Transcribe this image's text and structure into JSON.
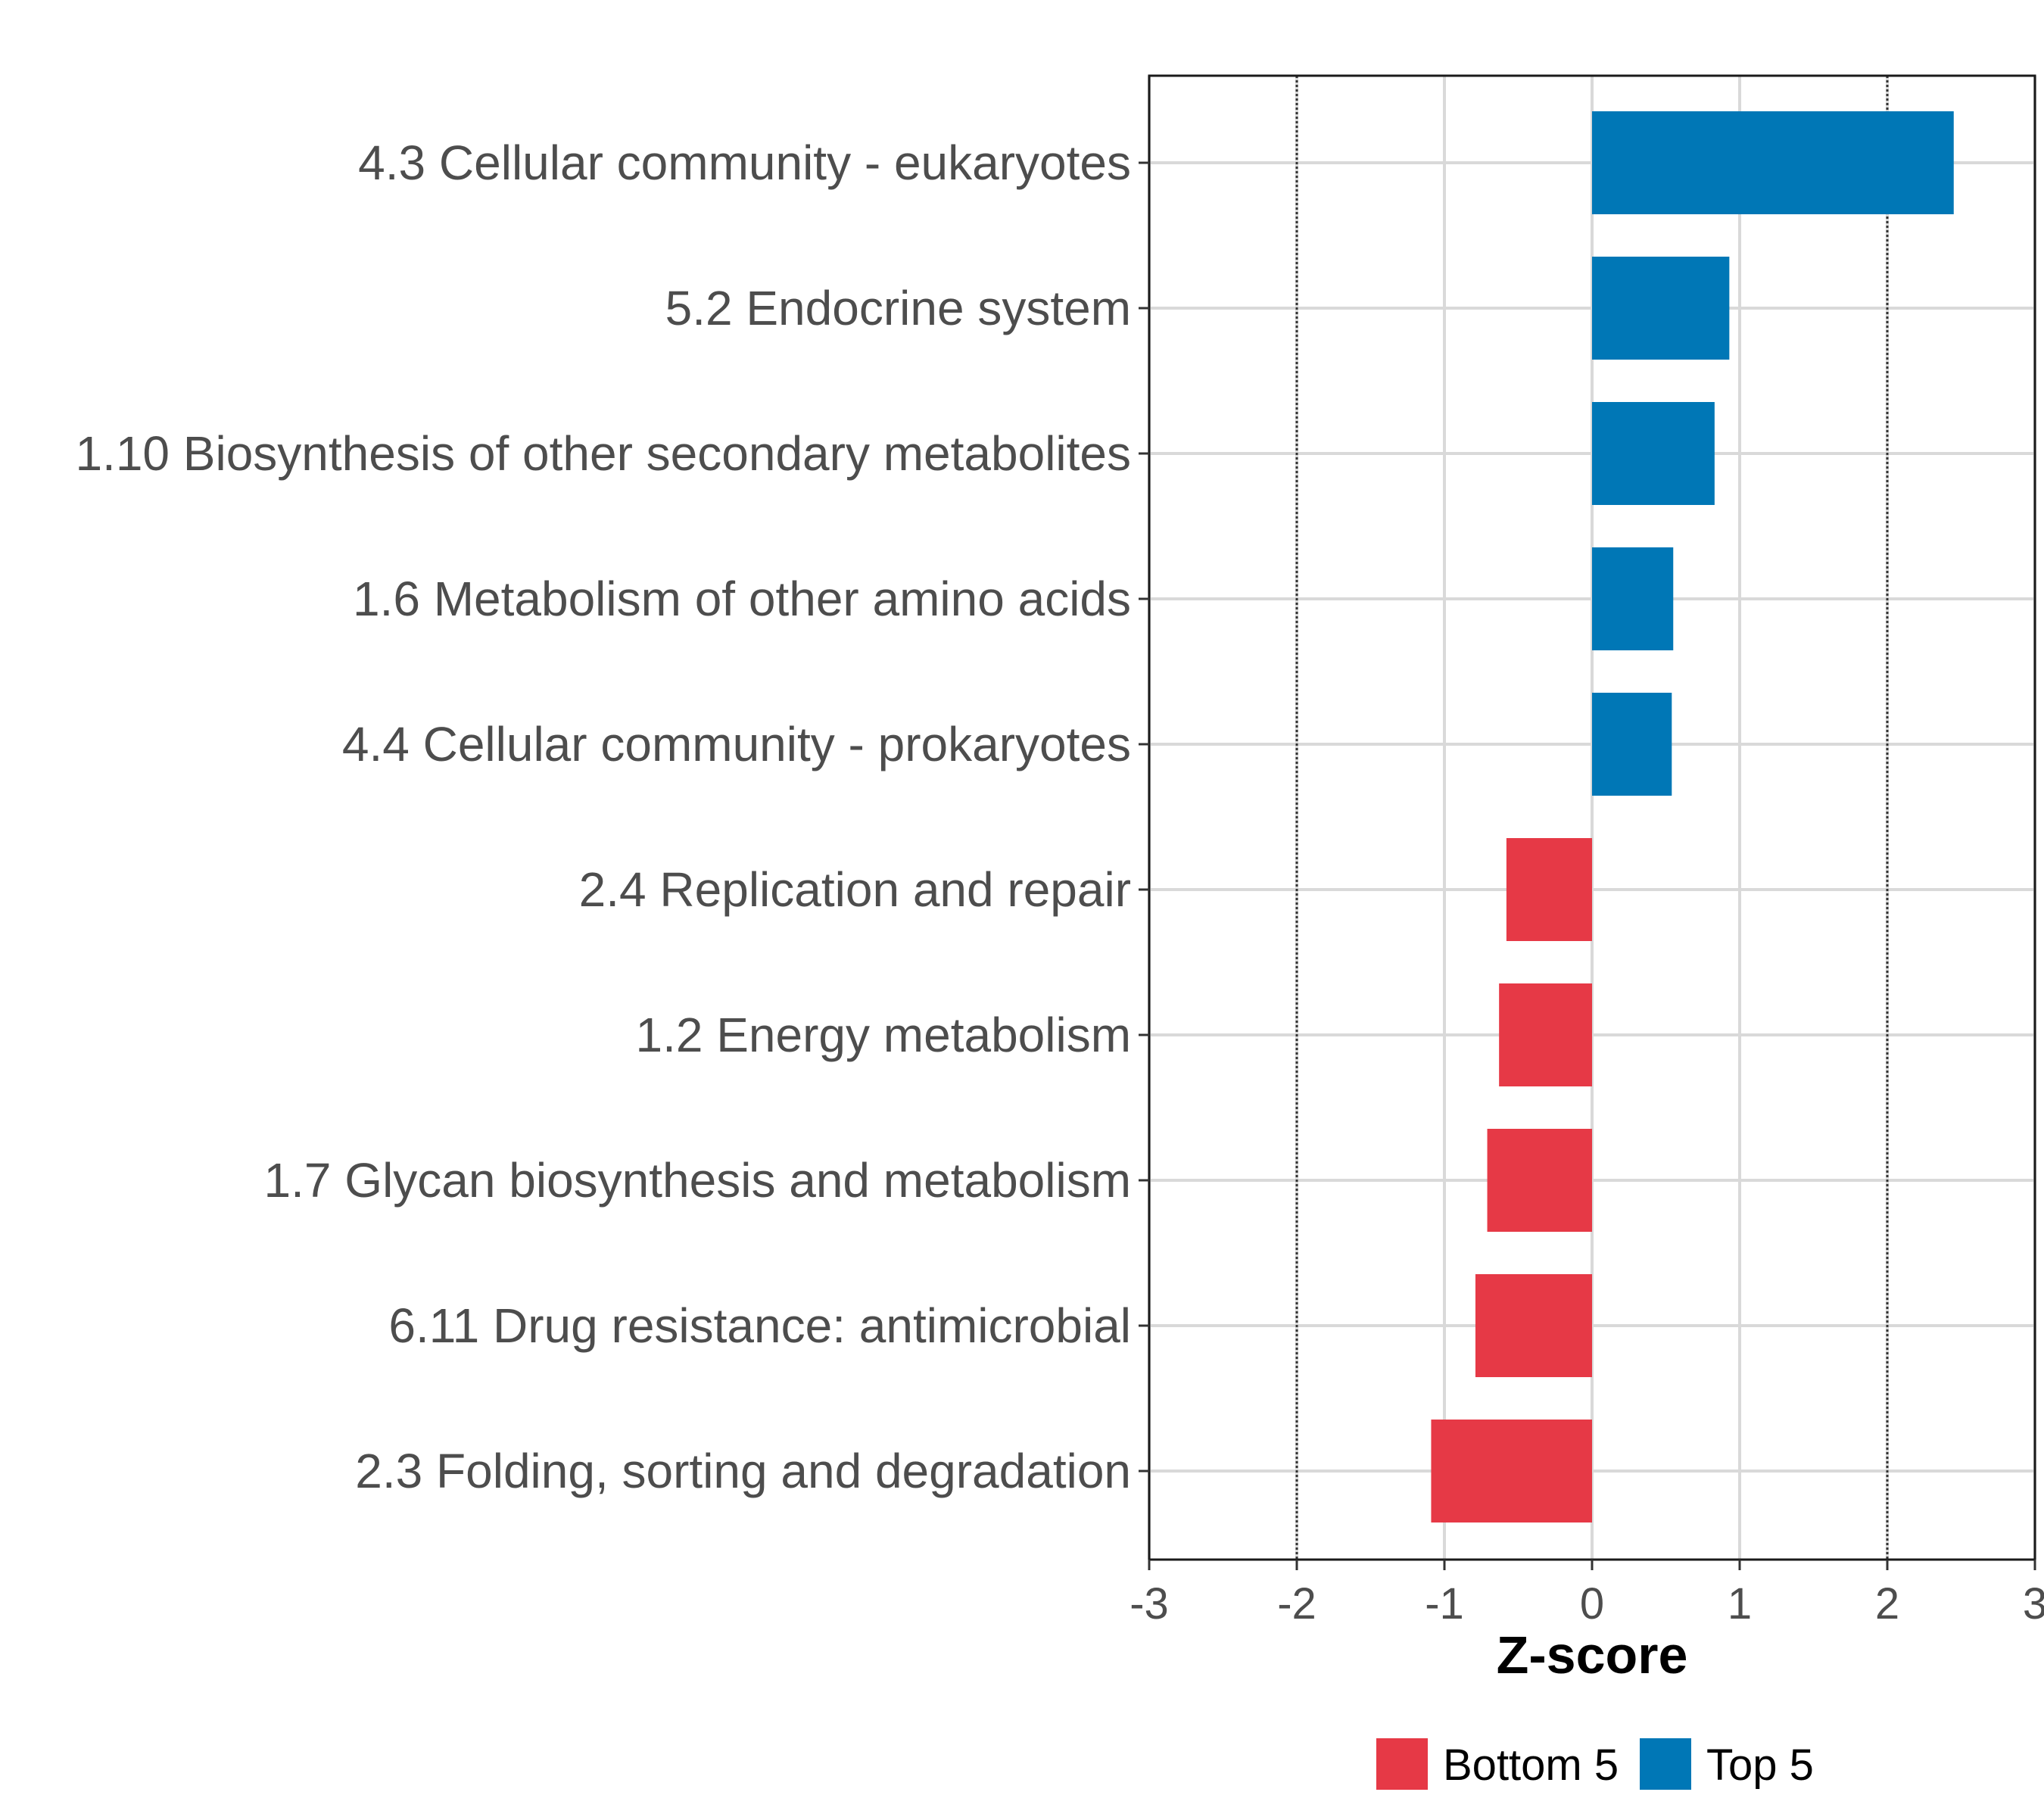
{
  "chart_data": {
    "type": "bar",
    "orientation": "horizontal",
    "categories": [
      "4.3 Cellular community - eukaryotes",
      "5.2 Endocrine system",
      "1.10 Biosynthesis of other secondary metabolites",
      "1.6 Metabolism of other amino acids",
      "4.4 Cellular community - prokaryotes",
      "2.4 Replication and repair",
      "1.2 Energy metabolism",
      "1.7 Glycan biosynthesis and metabolism",
      "6.11 Drug resistance: antimicrobial",
      "2.3 Folding, sorting and degradation"
    ],
    "values": [
      2.45,
      0.93,
      0.83,
      0.55,
      0.54,
      -0.58,
      -0.63,
      -0.71,
      -0.79,
      -1.09
    ],
    "groups": [
      "Top 5",
      "Top 5",
      "Top 5",
      "Top 5",
      "Top 5",
      "Bottom 5",
      "Bottom 5",
      "Bottom 5",
      "Bottom 5",
      "Bottom 5"
    ],
    "xlabel": "Z-score",
    "xlim": [
      -3,
      3
    ],
    "xticks": [
      "-3",
      "-2",
      "-1",
      "0",
      "1",
      "2",
      "3"
    ],
    "reference_lines": [
      -2,
      2
    ],
    "grid": true,
    "legend": {
      "position": "bottom",
      "entries": [
        {
          "label": "Bottom 5",
          "color": "#E63946"
        },
        {
          "label": "Top 5",
          "color": "#0077B6"
        }
      ]
    },
    "colors": {
      "Top 5": "#0077B6",
      "Bottom 5": "#E63946"
    }
  }
}
